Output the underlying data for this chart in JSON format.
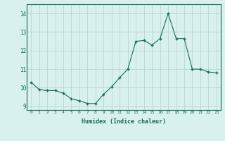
{
  "x": [
    0,
    1,
    2,
    3,
    4,
    5,
    6,
    7,
    8,
    9,
    10,
    11,
    12,
    13,
    14,
    15,
    16,
    17,
    18,
    19,
    20,
    21,
    22,
    23
  ],
  "y": [
    10.3,
    9.9,
    9.85,
    9.85,
    9.7,
    9.4,
    9.3,
    9.15,
    9.15,
    9.65,
    10.05,
    10.55,
    11.0,
    12.5,
    12.55,
    12.3,
    12.65,
    14.0,
    12.65,
    12.65,
    11.0,
    11.0,
    10.85,
    10.8
  ],
  "xlabel": "Humidex (Indice chaleur)",
  "ylim": [
    8.8,
    14.5
  ],
  "xlim": [
    -0.5,
    23.5
  ],
  "yticks": [
    9,
    10,
    11,
    12,
    13,
    14
  ],
  "xtick_labels": [
    "0",
    "1",
    "2",
    "3",
    "4",
    "5",
    "6",
    "7",
    "8",
    "9",
    "10",
    "11",
    "12",
    "13",
    "14",
    "15",
    "16",
    "17",
    "18",
    "19",
    "20",
    "21",
    "22",
    "23"
  ],
  "line_color": "#1a6b5a",
  "marker_color": "#1a6b5a",
  "bg_color": "#d8f0ee",
  "grid_color": "#b8d8d4",
  "label_color": "#1a6b5a",
  "tick_color": "#1a6b5a",
  "spine_color": "#1a6b5a"
}
